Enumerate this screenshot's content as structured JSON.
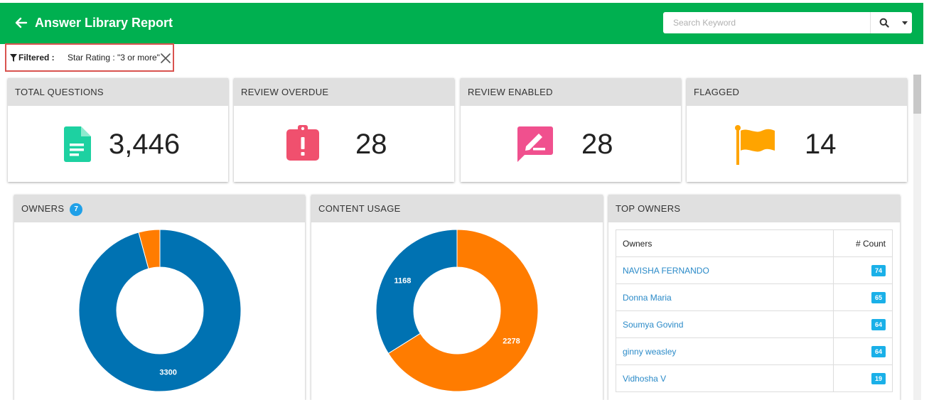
{
  "header": {
    "title": "Answer Library Report",
    "search_placeholder": "Search Keyword"
  },
  "filter": {
    "label": "Filtered :",
    "value": "Star Rating : \"3 or more\""
  },
  "stats": [
    {
      "title": "TOTAL QUESTIONS",
      "value": "3,446",
      "icon": "document-icon",
      "color": "#1dd1a1"
    },
    {
      "title": "REVIEW OVERDUE",
      "value": "28",
      "icon": "alert-clipboard-icon",
      "color": "#f0506e"
    },
    {
      "title": "REVIEW ENABLED",
      "value": "28",
      "icon": "edit-comment-icon",
      "color": "#f0508e"
    },
    {
      "title": "FLAGGED",
      "value": "14",
      "icon": "flag-icon",
      "color": "#ffa400"
    }
  ],
  "owners_panel": {
    "title": "OWNERS",
    "badge": "7"
  },
  "content_usage_panel": {
    "title": "CONTENT USAGE"
  },
  "top_owners_panel": {
    "title": "TOP OWNERS",
    "columns": [
      "Owners",
      "# Count"
    ],
    "rows": [
      {
        "name": "NAVISHA FERNANDO",
        "count": "74"
      },
      {
        "name": "Donna Maria",
        "count": "65"
      },
      {
        "name": "Soumya Govind",
        "count": "64"
      },
      {
        "name": "ginny weasley",
        "count": "64"
      },
      {
        "name": "Vidhosha V",
        "count": "19"
      }
    ]
  },
  "chart_data": [
    {
      "type": "pie",
      "title": "OWNERS",
      "series": [
        {
          "values": [
            3300,
            146
          ]
        }
      ],
      "labels_shown": [
        "3300"
      ],
      "colors": [
        "#0072b2",
        "#ff7c00"
      ]
    },
    {
      "type": "pie",
      "title": "CONTENT USAGE",
      "series": [
        {
          "values": [
            2278,
            1168
          ]
        }
      ],
      "labels_shown": [
        "2278",
        "1168"
      ],
      "colors": [
        "#ff7c00",
        "#0072b2"
      ]
    }
  ]
}
